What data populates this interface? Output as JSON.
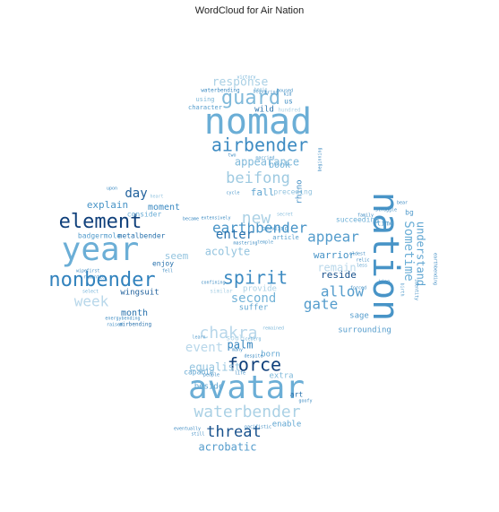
{
  "chart_data": {
    "type": "wordcloud",
    "title": "WordCloud for Air Nation",
    "colormap": "Blues",
    "mask_shape": "air-nation-symbol",
    "words": [
      {
        "text": "nomad",
        "weight": 0.95,
        "shade": 0.5
      },
      {
        "text": "avatar",
        "weight": 0.95,
        "shade": 0.5
      },
      {
        "text": "nation",
        "weight": 0.9,
        "shade": 0.65
      },
      {
        "text": "year",
        "weight": 0.9,
        "shade": 0.5
      },
      {
        "text": "nonbender",
        "weight": 0.75,
        "shade": 0.75
      },
      {
        "text": "element",
        "weight": 0.7,
        "shade": 0.95
      },
      {
        "text": "airbender",
        "weight": 0.6,
        "shade": 0.7
      },
      {
        "text": "guard",
        "weight": 0.55,
        "shade": 0.4
      },
      {
        "text": "beifong",
        "weight": 0.55,
        "shade": 0.25
      },
      {
        "text": "spirit",
        "weight": 0.55,
        "shade": 0.7
      },
      {
        "text": "force",
        "weight": 0.55,
        "shade": 0.95
      },
      {
        "text": "waterbender",
        "weight": 0.5,
        "shade": 0.2
      },
      {
        "text": "earthbender",
        "weight": 0.5,
        "shade": 0.65
      },
      {
        "text": "new",
        "weight": 0.45,
        "shade": 0.2
      },
      {
        "text": "threat",
        "weight": 0.45,
        "shade": 0.9
      },
      {
        "text": "appear",
        "weight": 0.45,
        "shade": 0.6
      },
      {
        "text": "allow",
        "weight": 0.45,
        "shade": 0.6
      },
      {
        "text": "gate",
        "weight": 0.45,
        "shade": 0.6
      },
      {
        "text": "Sometime",
        "weight": 0.45,
        "shade": 0.5
      },
      {
        "text": "chakra",
        "weight": 0.4,
        "shade": 0.15
      },
      {
        "text": "second",
        "weight": 0.4,
        "shade": 0.45
      },
      {
        "text": "day",
        "weight": 0.4,
        "shade": 0.85
      },
      {
        "text": "week",
        "weight": 0.4,
        "shade": 0.15
      },
      {
        "text": "understand",
        "weight": 0.35,
        "shade": 0.55
      },
      {
        "text": "enter",
        "weight": 0.35,
        "shade": 0.8
      },
      {
        "text": "remain",
        "weight": 0.35,
        "shade": 0.15
      },
      {
        "text": "appearance",
        "weight": 0.3,
        "shade": 0.4
      },
      {
        "text": "acolyte",
        "weight": 0.3,
        "shade": 0.3
      },
      {
        "text": "event",
        "weight": 0.3,
        "shade": 0.15
      },
      {
        "text": "equalist",
        "weight": 0.3,
        "shade": 0.3
      },
      {
        "text": "acrobatic",
        "weight": 0.3,
        "shade": 0.6
      },
      {
        "text": "explain",
        "weight": 0.3,
        "shade": 0.65
      },
      {
        "text": "moment",
        "weight": 0.28,
        "shade": 0.7
      },
      {
        "text": "warrior",
        "weight": 0.28,
        "shade": 0.65
      },
      {
        "text": "reside",
        "weight": 0.28,
        "shade": 0.9
      },
      {
        "text": "palm",
        "weight": 0.28,
        "shade": 0.75
      },
      {
        "text": "response",
        "weight": 0.28,
        "shade": 0.2
      },
      {
        "text": "book",
        "weight": 0.25,
        "shade": 0.5
      },
      {
        "text": "fall",
        "weight": 0.25,
        "shade": 0.55
      },
      {
        "text": "seem",
        "weight": 0.25,
        "shade": 0.3
      },
      {
        "text": "month",
        "weight": 0.24,
        "shade": 0.8
      },
      {
        "text": "wingsuit",
        "weight": 0.24,
        "shade": 0.85
      },
      {
        "text": "surrounding",
        "weight": 0.24,
        "shade": 0.6
      },
      {
        "text": "provide",
        "weight": 0.24,
        "shade": 0.2
      },
      {
        "text": "suffer",
        "weight": 0.22,
        "shade": 0.55
      },
      {
        "text": "beside",
        "weight": 0.22,
        "shade": 0.55
      },
      {
        "text": "enable",
        "weight": 0.22,
        "shade": 0.55
      },
      {
        "text": "sage",
        "weight": 0.22,
        "shade": 0.6
      },
      {
        "text": "consider",
        "weight": 0.22,
        "shade": 0.5
      },
      {
        "text": "enjoy",
        "weight": 0.22,
        "shade": 0.8
      },
      {
        "text": "extra",
        "weight": 0.22,
        "shade": 0.4
      },
      {
        "text": "badgermole",
        "weight": 0.22,
        "shade": 0.6
      },
      {
        "text": "metalbender",
        "weight": 0.2,
        "shade": 0.8
      },
      {
        "text": "character",
        "weight": 0.18,
        "shade": 0.6
      },
      {
        "text": "using",
        "weight": 0.18,
        "shade": 0.4
      },
      {
        "text": "wild",
        "weight": 0.18,
        "shade": 0.8
      },
      {
        "text": "capable",
        "weight": 0.18,
        "shade": 0.55
      },
      {
        "text": "us",
        "weight": 0.18,
        "shade": 0.7
      },
      {
        "text": "born",
        "weight": 0.18,
        "shade": 0.55
      },
      {
        "text": "art",
        "weight": 0.17,
        "shade": 0.8
      },
      {
        "text": "soul",
        "weight": 0.17,
        "shade": 0.2
      },
      {
        "text": "rhino",
        "weight": 0.17,
        "shade": 0.7
      },
      {
        "text": "airbending",
        "weight": 0.16,
        "shade": 0.8
      },
      {
        "text": "bending",
        "weight": 0.16,
        "shade": 0.6
      },
      {
        "text": "article",
        "weight": 0.16,
        "shade": 0.6
      },
      {
        "text": "preceding",
        "weight": 0.16,
        "shade": 0.3
      },
      {
        "text": "bg",
        "weight": 0.16,
        "shade": 0.6
      },
      {
        "text": "time",
        "weight": 0.16,
        "shade": 0.6
      },
      {
        "text": "succeeding",
        "weight": 0.16,
        "shade": 0.5
      },
      {
        "text": "iceberg",
        "weight": 0.14,
        "shade": 0.5
      },
      {
        "text": "waterbending",
        "weight": 0.14,
        "shade": 0.7
      },
      {
        "text": "victory",
        "weight": 0.14,
        "shade": 0.5
      },
      {
        "text": "hundred",
        "weight": 0.14,
        "shade": 0.2
      },
      {
        "text": "begin",
        "weight": 0.14,
        "shade": 0.4
      },
      {
        "text": "married",
        "weight": 0.13,
        "shade": 0.6
      },
      {
        "text": "housed",
        "weight": 0.13,
        "shade": 0.7
      },
      {
        "text": "upon",
        "weight": 0.13,
        "shade": 0.7
      },
      {
        "text": "heart",
        "weight": 0.13,
        "shade": 0.3
      },
      {
        "text": "first",
        "weight": 0.13,
        "shade": 0.7
      },
      {
        "text": "romantic",
        "weight": 0.13,
        "shade": 0.7
      },
      {
        "text": "wipe",
        "weight": 0.13,
        "shade": 0.7
      },
      {
        "text": "select",
        "weight": 0.13,
        "shade": 0.5
      },
      {
        "text": "fell",
        "weight": 0.13,
        "shade": 0.7
      },
      {
        "text": "raised",
        "weight": 0.13,
        "shade": 0.7
      },
      {
        "text": "energybending",
        "weight": 0.13,
        "shade": 0.7
      },
      {
        "text": "became",
        "weight": 0.13,
        "shade": 0.7
      },
      {
        "text": "extensively",
        "weight": 0.13,
        "shade": 0.7
      },
      {
        "text": "mastering",
        "weight": 0.13,
        "shade": 0.7
      },
      {
        "text": "secret",
        "weight": 0.13,
        "shade": 0.4
      },
      {
        "text": "cycle",
        "weight": 0.13,
        "shade": 0.6
      },
      {
        "text": "two",
        "weight": 0.13,
        "shade": 0.7
      },
      {
        "text": "beginning",
        "weight": 0.13,
        "shade": 0.7
      },
      {
        "text": "family",
        "weight": 0.13,
        "shade": 0.7
      },
      {
        "text": "struggle",
        "weight": 0.13,
        "shade": 0.7
      },
      {
        "text": "bear",
        "weight": 0.13,
        "shade": 0.7
      },
      {
        "text": "oldest",
        "weight": 0.13,
        "shade": 0.7
      },
      {
        "text": "less",
        "weight": 0.13,
        "shade": 0.6
      },
      {
        "text": "birth",
        "weight": 0.13,
        "shade": 0.6
      },
      {
        "text": "forced",
        "weight": 0.13,
        "shade": 0.7
      },
      {
        "text": "earthbending",
        "weight": 0.13,
        "shade": 0.7
      },
      {
        "text": "learn",
        "weight": 0.13,
        "shade": 0.6
      },
      {
        "text": "remained",
        "weight": 0.13,
        "shade": 0.4
      },
      {
        "text": "despite",
        "weight": 0.13,
        "shade": 0.7
      },
      {
        "text": "people",
        "weight": 0.13,
        "shade": 0.7
      },
      {
        "text": "life",
        "weight": 0.13,
        "shade": 0.7
      },
      {
        "text": "many",
        "weight": 0.13,
        "shade": 0.7
      },
      {
        "text": "eventually",
        "weight": 0.13,
        "shade": 0.7
      },
      {
        "text": "still",
        "weight": 0.13,
        "shade": 0.7
      },
      {
        "text": "pacifistic",
        "weight": 0.13,
        "shade": 0.7
      },
      {
        "text": "goofy",
        "weight": 0.13,
        "shade": 0.7
      },
      {
        "text": "kid",
        "weight": 0.13,
        "shade": 0.7
      },
      {
        "text": "bring",
        "weight": 0.13,
        "shade": 0.7
      },
      {
        "text": "king",
        "weight": 0.13,
        "shade": 0.7
      },
      {
        "text": "relic",
        "weight": 0.13,
        "shade": 0.7
      },
      {
        "text": "identity",
        "weight": 0.13,
        "shade": 0.7
      },
      {
        "text": "confining",
        "weight": 0.13,
        "shade": 0.7
      },
      {
        "text": "similar",
        "weight": 0.13,
        "shade": 0.2
      },
      {
        "text": "temple",
        "weight": 0.13,
        "shade": 0.6
      },
      {
        "text": "begun",
        "weight": 0.13,
        "shade": 0.6
      }
    ]
  }
}
